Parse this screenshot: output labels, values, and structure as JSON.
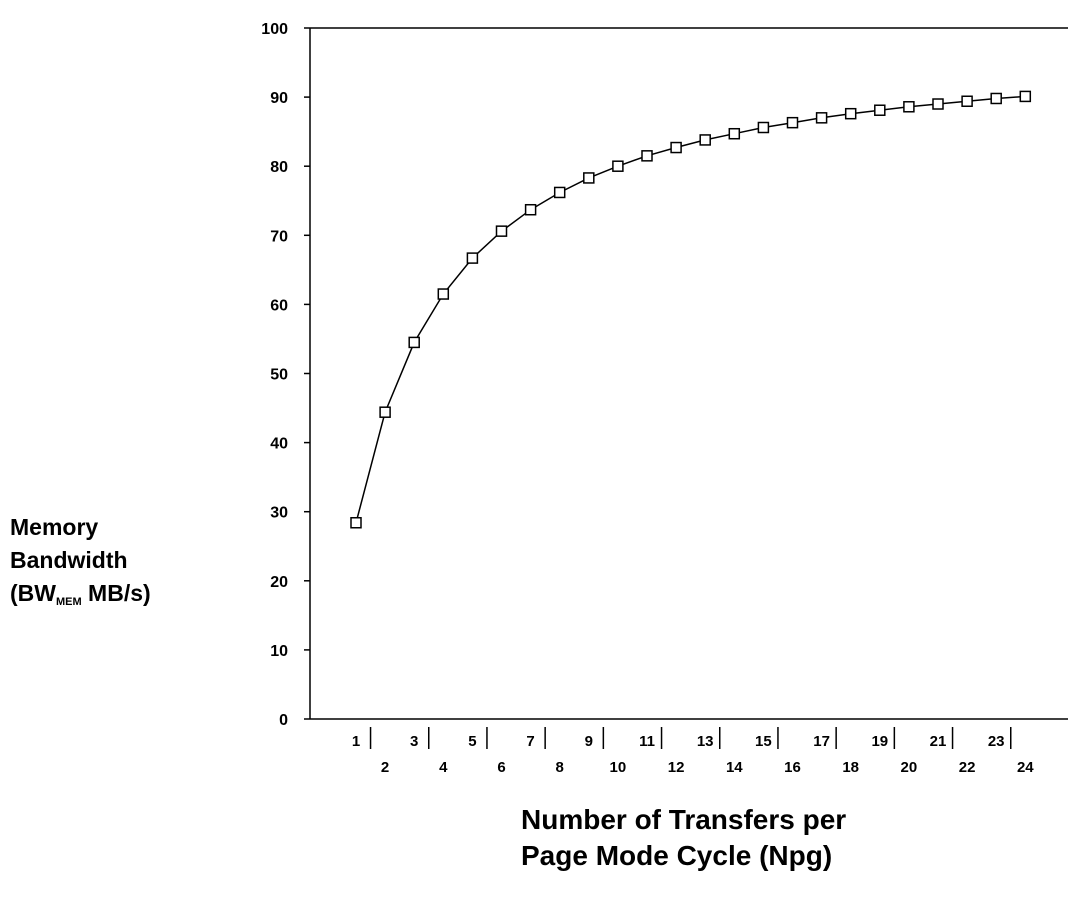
{
  "chart_data": {
    "type": "line",
    "title": "",
    "ylabel_lines": [
      "Memory",
      "Bandwidth"
    ],
    "ylabel_unit": {
      "prefix": "(BW",
      "subscript": "MEM",
      "suffix": " MB/s)"
    },
    "xlabel_lines": [
      "Number of Transfers per",
      "Page Mode Cycle (Npg)"
    ],
    "x": [
      1,
      2,
      3,
      4,
      5,
      6,
      7,
      8,
      9,
      10,
      11,
      12,
      13,
      14,
      15,
      16,
      17,
      18,
      19,
      20,
      21,
      22,
      23,
      24
    ],
    "values": [
      28.4,
      44.4,
      54.5,
      61.5,
      66.7,
      70.6,
      73.7,
      76.2,
      78.3,
      80.0,
      81.5,
      82.7,
      83.8,
      84.7,
      85.6,
      86.3,
      87.0,
      87.6,
      88.1,
      88.6,
      89.0,
      89.4,
      89.8,
      90.1
    ],
    "yticks": [
      0,
      10,
      20,
      30,
      40,
      50,
      60,
      70,
      80,
      90,
      100
    ],
    "ylim": [
      0,
      100
    ],
    "xlim": [
      1,
      24
    ],
    "marker": "square",
    "grid": false,
    "line_color": "#000000"
  }
}
